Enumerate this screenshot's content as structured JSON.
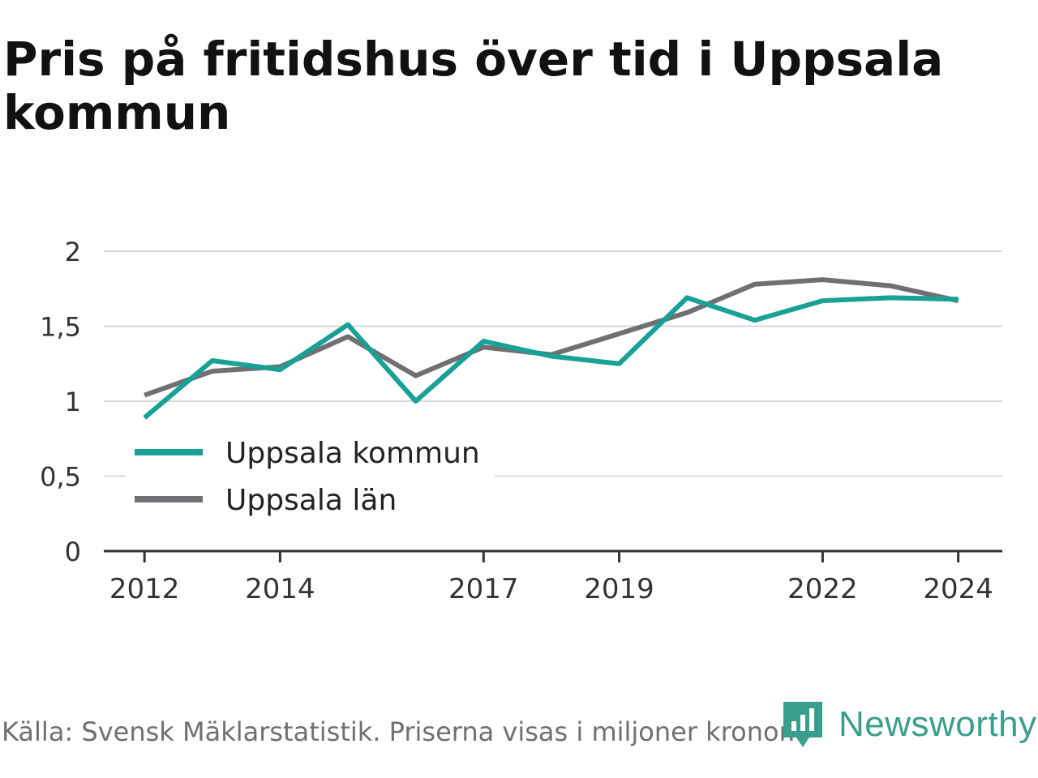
{
  "chart_data": {
    "type": "line",
    "title": "Pris på fritidshus över tid i Uppsala kommun",
    "x": [
      2012,
      2013,
      2014,
      2015,
      2016,
      2017,
      2018,
      2019,
      2020,
      2021,
      2022,
      2023,
      2024
    ],
    "x_tick_labels": [
      "2012",
      "2014",
      "2017",
      "2019",
      "2022",
      "2024"
    ],
    "x_tick_values": [
      2012,
      2014,
      2017,
      2019,
      2022,
      2024
    ],
    "y_ticks": [
      0,
      0.5,
      1,
      1.5,
      2
    ],
    "y_tick_labels": [
      "0",
      "0,5",
      "1",
      "1,5",
      "2"
    ],
    "ylim": [
      0,
      2
    ],
    "xlabel": "",
    "ylabel": "",
    "grid": true,
    "legend_placement": "left",
    "series": [
      {
        "name": "Uppsala kommun",
        "color": "#18a196",
        "values": [
          0.89,
          1.27,
          1.21,
          1.51,
          1.0,
          1.4,
          1.3,
          1.25,
          1.69,
          1.54,
          1.67,
          1.69,
          1.68
        ]
      },
      {
        "name": "Uppsala län",
        "color": "#707074",
        "values": [
          1.04,
          1.2,
          1.23,
          1.43,
          1.17,
          1.36,
          1.31,
          1.45,
          1.59,
          1.78,
          1.81,
          1.77,
          1.67
        ]
      }
    ]
  },
  "footer": {
    "source": "Källa: Svensk Mäklarstatistik. Priserna visas i miljoner kronor.",
    "brand": "Newsworthy"
  }
}
